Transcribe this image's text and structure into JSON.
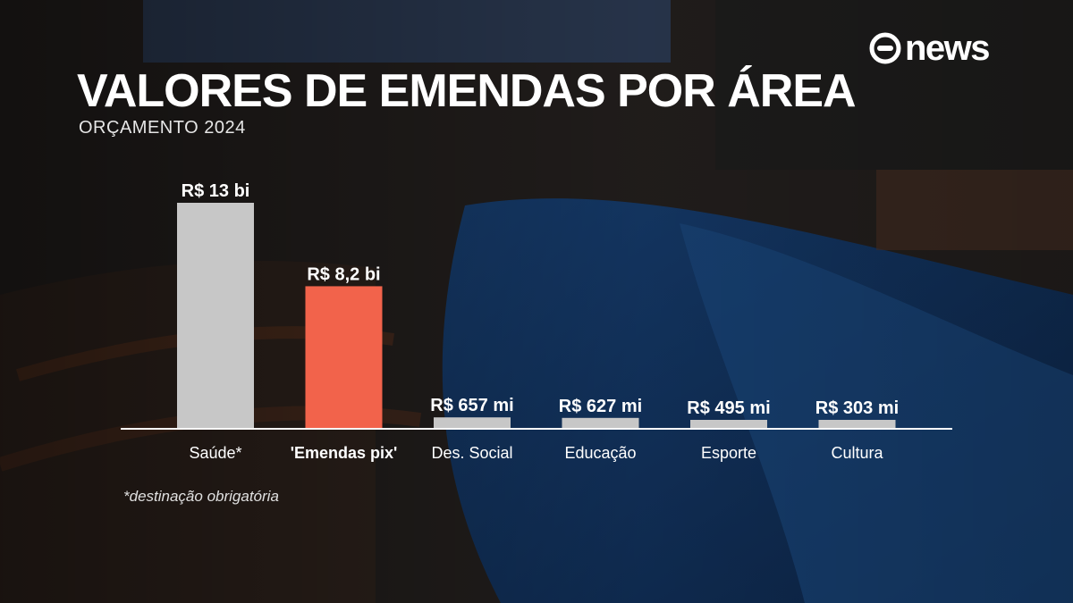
{
  "brand": {
    "logo_text": "news",
    "logo_icon": "globo-circle-icon"
  },
  "title": "VALORES DE EMENDAS POR ÁREA",
  "subtitle": "ORÇAMENTO 2024",
  "footnote": "*destinação obrigatória",
  "colors": {
    "default_bar": "#c7c7c7",
    "highlight_bar": "#f2634b",
    "axis": "#ffffff"
  },
  "chart_data": {
    "type": "bar",
    "title": "VALORES DE EMENDAS POR ÁREA",
    "subtitle": "ORÇAMENTO 2024",
    "categories": [
      "Saúde*",
      "'Emendas pix'",
      "Des. Social",
      "Educação",
      "Esporte",
      "Cultura"
    ],
    "values_millions": [
      13000,
      8200,
      657,
      627,
      495,
      303
    ],
    "value_labels": [
      "R$ 13 bi",
      "R$ 8,2 bi",
      "R$ 657 mi",
      "R$ 627 mi",
      "R$ 495 mi",
      "R$ 303 mi"
    ],
    "highlight_index": 1,
    "bold_category_index": 1,
    "ylim": [
      0,
      13000
    ],
    "grid": false,
    "legend": "none"
  }
}
